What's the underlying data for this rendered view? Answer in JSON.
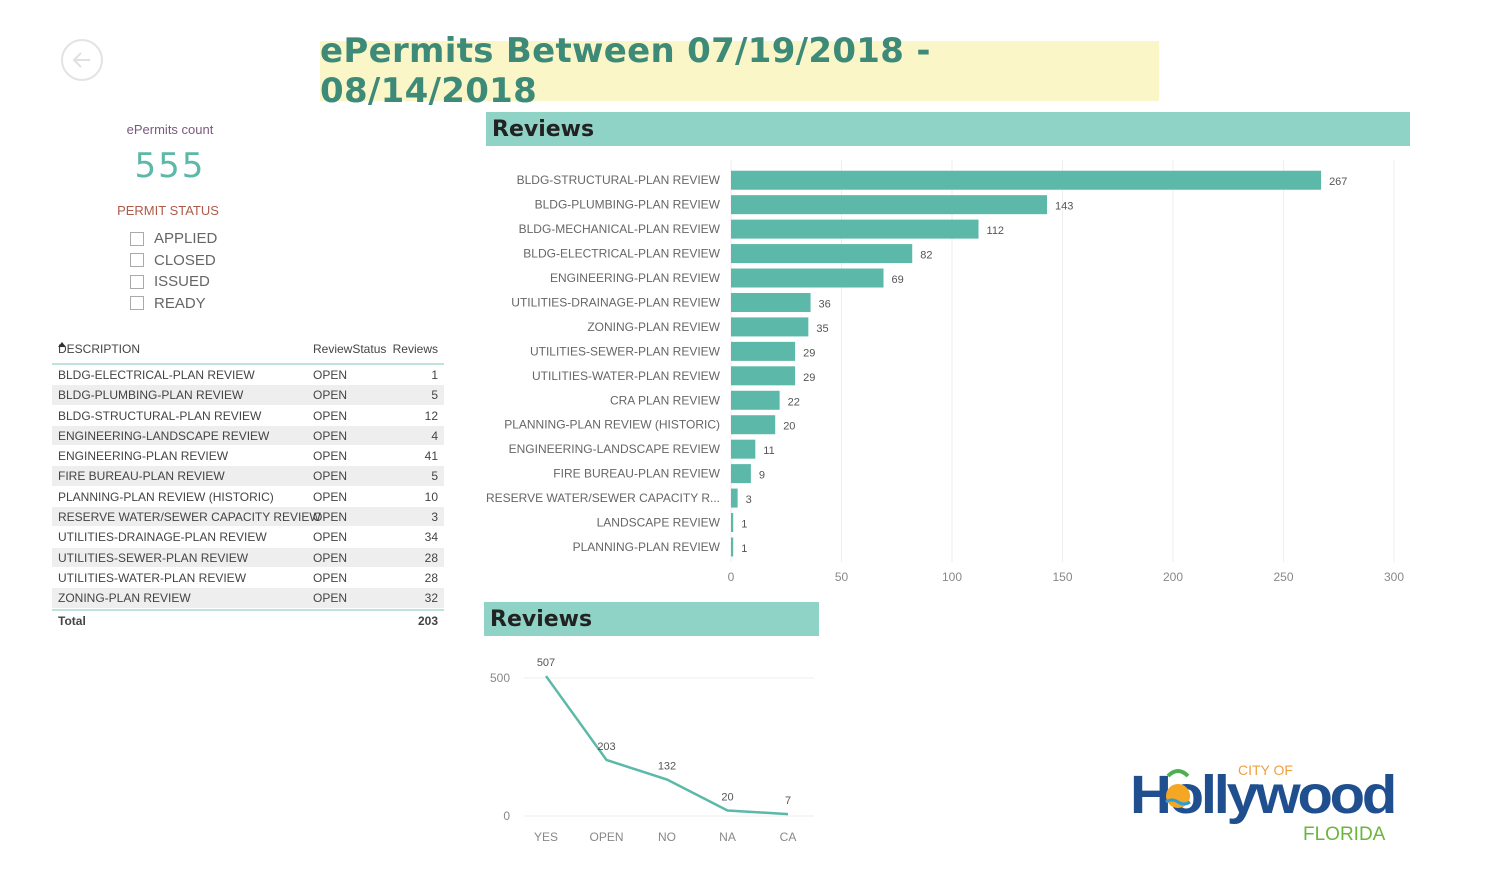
{
  "title": "ePermits Between 07/19/2018 - 08/14/2018",
  "kpi": {
    "label": "ePermits count",
    "value": "555"
  },
  "permit_status": {
    "title": "PERMIT STATUS",
    "options": [
      "APPLIED",
      "CLOSED",
      "ISSUED",
      "READY"
    ]
  },
  "table": {
    "headers": [
      "DESCRIPTION",
      "ReviewStatus",
      "Reviews"
    ],
    "rows": [
      [
        "BLDG-ELECTRICAL-PLAN REVIEW",
        "OPEN",
        "1"
      ],
      [
        "BLDG-PLUMBING-PLAN REVIEW",
        "OPEN",
        "5"
      ],
      [
        "BLDG-STRUCTURAL-PLAN REVIEW",
        "OPEN",
        "12"
      ],
      [
        "ENGINEERING-LANDSCAPE REVIEW",
        "OPEN",
        "4"
      ],
      [
        "ENGINEERING-PLAN REVIEW",
        "OPEN",
        "41"
      ],
      [
        "FIRE BUREAU-PLAN REVIEW",
        "OPEN",
        "5"
      ],
      [
        "PLANNING-PLAN REVIEW (HISTORIC)",
        "OPEN",
        "10"
      ],
      [
        "RESERVE WATER/SEWER CAPACITY REVIEW",
        "OPEN",
        "3"
      ],
      [
        "UTILITIES-DRAINAGE-PLAN REVIEW",
        "OPEN",
        "34"
      ],
      [
        "UTILITIES-SEWER-PLAN REVIEW",
        "OPEN",
        "28"
      ],
      [
        "UTILITIES-WATER-PLAN REVIEW",
        "OPEN",
        "28"
      ],
      [
        "ZONING-PLAN REVIEW",
        "OPEN",
        "32"
      ]
    ],
    "total_label": "Total",
    "total_value": "203"
  },
  "bar_panel_title": "Reviews",
  "line_panel_title": "Reviews",
  "colors": {
    "accent": "#5cb8a8",
    "header_bg": "#8fd3c6",
    "title_bg": "#fbf6c8",
    "title_text": "#3d8a78"
  },
  "logo": {
    "line1": "CITY OF",
    "line2": "Hollywood",
    "line3": "FLORIDA"
  },
  "chart_data": [
    {
      "type": "bar",
      "orientation": "horizontal",
      "categories": [
        "BLDG-STRUCTURAL-PLAN REVIEW",
        "BLDG-PLUMBING-PLAN REVIEW",
        "BLDG-MECHANICAL-PLAN REVIEW",
        "BLDG-ELECTRICAL-PLAN REVIEW",
        "ENGINEERING-PLAN REVIEW",
        "UTILITIES-DRAINAGE-PLAN REVIEW",
        "ZONING-PLAN REVIEW",
        "UTILITIES-SEWER-PLAN REVIEW",
        "UTILITIES-WATER-PLAN REVIEW",
        "CRA PLAN REVIEW",
        "PLANNING-PLAN REVIEW (HISTORIC)",
        "ENGINEERING-LANDSCAPE REVIEW",
        "FIRE BUREAU-PLAN REVIEW",
        "RESERVE WATER/SEWER CAPACITY R...",
        "LANDSCAPE REVIEW",
        "PLANNING-PLAN REVIEW"
      ],
      "values": [
        267,
        143,
        112,
        82,
        69,
        36,
        35,
        29,
        29,
        22,
        20,
        11,
        9,
        3,
        1,
        1
      ],
      "xlim": [
        0,
        300
      ],
      "xticks": [
        0,
        50,
        100,
        150,
        200,
        250,
        300
      ],
      "grid": true
    },
    {
      "type": "line",
      "x": [
        "YES",
        "OPEN",
        "NO",
        "NA",
        "CA"
      ],
      "values": [
        507,
        203,
        132,
        20,
        7
      ],
      "ylim": [
        0,
        500
      ],
      "yticks": [
        0,
        500
      ],
      "grid": true
    }
  ]
}
